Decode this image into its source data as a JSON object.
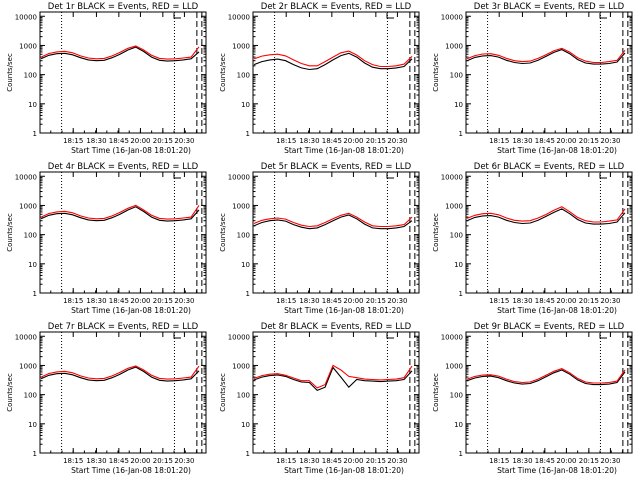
{
  "colors": {
    "events": "#000000",
    "lld": "#ff0000",
    "axis": "#000000",
    "background": "#ffffff"
  },
  "common": {
    "ylabel": "Counts/sec",
    "xlabel": "Start Time (16-Jan-08 18:01:20)",
    "xticks": [
      "18:15",
      "18:30",
      "18:45",
      "20:00",
      "20:15",
      "20:30"
    ],
    "yticks": [
      "1",
      "10",
      "100",
      "1000",
      "10000"
    ],
    "yscale": "log",
    "ylim": [
      1,
      14000
    ]
  },
  "chart_data": [
    {
      "type": "line",
      "title": "Det 1r BLACK = Events, RED = LLD",
      "series": [
        {
          "values": [
            350,
            460,
            520,
            540,
            480,
            380,
            320,
            300,
            310,
            380,
            500,
            700,
            880,
            620,
            400,
            310,
            290,
            300,
            320,
            350,
            600
          ]
        },
        {
          "values": [
            400,
            530,
            600,
            630,
            560,
            440,
            370,
            350,
            360,
            440,
            580,
            800,
            960,
            700,
            460,
            360,
            340,
            350,
            370,
            400,
            900
          ]
        }
      ]
    },
    {
      "type": "line",
      "title": "Det 2r BLACK = Events, RED = LLD",
      "series": [
        {
          "values": [
            220,
            280,
            320,
            340,
            300,
            220,
            170,
            150,
            160,
            220,
            320,
            450,
            540,
            400,
            250,
            180,
            160,
            160,
            170,
            190,
            350
          ]
        },
        {
          "values": [
            350,
            430,
            480,
            500,
            440,
            320,
            240,
            200,
            200,
            280,
            400,
            560,
            640,
            470,
            300,
            220,
            190,
            190,
            200,
            230,
            420
          ]
        }
      ]
    },
    {
      "type": "line",
      "title": "Det 3r BLACK = Events, RED = LLD",
      "series": [
        {
          "values": [
            300,
            390,
            440,
            450,
            400,
            310,
            260,
            240,
            250,
            310,
            420,
            580,
            720,
            520,
            330,
            250,
            230,
            230,
            240,
            270,
            550
          ]
        },
        {
          "values": [
            350,
            450,
            510,
            520,
            460,
            360,
            300,
            280,
            290,
            360,
            480,
            660,
            800,
            590,
            380,
            290,
            260,
            260,
            280,
            310,
            680
          ]
        }
      ]
    },
    {
      "type": "line",
      "title": "Det 4r BLACK = Events, RED = LLD",
      "series": [
        {
          "values": [
            350,
            460,
            520,
            540,
            480,
            380,
            320,
            300,
            310,
            380,
            500,
            700,
            900,
            620,
            400,
            310,
            290,
            300,
            320,
            350,
            700
          ]
        },
        {
          "values": [
            400,
            530,
            600,
            630,
            560,
            440,
            370,
            350,
            360,
            440,
            580,
            800,
            1000,
            700,
            460,
            360,
            340,
            350,
            370,
            400,
            1000
          ]
        }
      ]
    },
    {
      "type": "line",
      "title": "Det 5r BLACK = Events, RED = LLD",
      "series": [
        {
          "values": [
            200,
            260,
            300,
            320,
            290,
            220,
            180,
            160,
            170,
            220,
            300,
            400,
            470,
            350,
            230,
            170,
            160,
            160,
            170,
            190,
            300
          ]
        },
        {
          "values": [
            240,
            310,
            350,
            370,
            340,
            260,
            210,
            190,
            200,
            260,
            350,
            460,
            540,
            400,
            270,
            200,
            190,
            190,
            200,
            220,
            400
          ]
        }
      ]
    },
    {
      "type": "line",
      "title": "Det 6r BLACK = Events, RED = LLD",
      "series": [
        {
          "values": [
            300,
            390,
            440,
            450,
            400,
            310,
            260,
            240,
            250,
            310,
            420,
            580,
            760,
            520,
            330,
            250,
            230,
            230,
            240,
            270,
            560
          ]
        },
        {
          "values": [
            360,
            460,
            520,
            540,
            480,
            370,
            310,
            290,
            300,
            370,
            490,
            680,
            900,
            610,
            390,
            300,
            270,
            270,
            290,
            320,
            760
          ]
        }
      ]
    },
    {
      "type": "line",
      "title": "Det 7r BLACK = Events, RED = LLD",
      "series": [
        {
          "values": [
            350,
            460,
            520,
            540,
            480,
            380,
            320,
            300,
            310,
            380,
            500,
            700,
            880,
            620,
            400,
            310,
            290,
            300,
            320,
            350,
            650
          ]
        },
        {
          "values": [
            400,
            530,
            600,
            630,
            560,
            440,
            370,
            350,
            360,
            440,
            580,
            800,
            960,
            700,
            460,
            360,
            340,
            350,
            370,
            400,
            950
          ]
        }
      ]
    },
    {
      "type": "line",
      "title": "Det 8r BLACK = Events, RED = LLD",
      "series": [
        {
          "values": [
            320,
            400,
            450,
            470,
            420,
            330,
            270,
            260,
            140,
            180,
            850,
            400,
            180,
            330,
            300,
            290,
            280,
            290,
            300,
            330,
            650
          ]
        },
        {
          "values": [
            360,
            450,
            500,
            520,
            460,
            370,
            300,
            300,
            170,
            220,
            1000,
            700,
            420,
            380,
            340,
            330,
            320,
            330,
            340,
            380,
            950
          ]
        }
      ]
    },
    {
      "type": "line",
      "title": "Det 9r BLACK = Events, RED = LLD",
      "series": [
        {
          "values": [
            300,
            370,
            420,
            430,
            380,
            300,
            250,
            230,
            240,
            300,
            410,
            560,
            700,
            500,
            320,
            240,
            220,
            220,
            230,
            260,
            600
          ]
        },
        {
          "values": [
            340,
            420,
            470,
            480,
            430,
            340,
            280,
            260,
            270,
            340,
            460,
            630,
            780,
            560,
            360,
            270,
            250,
            250,
            260,
            290,
            700
          ]
        }
      ]
    }
  ]
}
